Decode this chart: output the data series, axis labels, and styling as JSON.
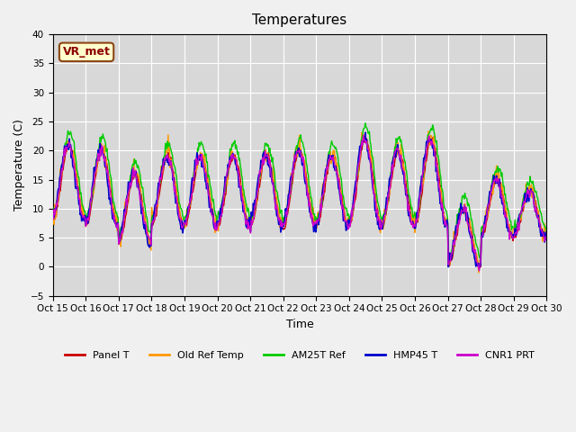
{
  "title": "Temperatures",
  "xlabel": "Time",
  "ylabel": "Temperature (C)",
  "ylim": [
    -5,
    40
  ],
  "annotation_text": "VR_met",
  "series_names": [
    "Panel T",
    "Old Ref Temp",
    "AM25T Ref",
    "HMP45 T",
    "CNR1 PRT"
  ],
  "series_colors": [
    "#cc0000",
    "#ff9900",
    "#00cc00",
    "#0000cc",
    "#cc00cc"
  ],
  "x_tick_labels": [
    "Oct 15",
    "Oct 16",
    "Oct 17",
    "Oct 18",
    "Oct 19",
    "Oct 20",
    "Oct 21",
    "Oct 22",
    "Oct 23",
    "Oct 24",
    "Oct 25",
    "Oct 26",
    "Oct 27",
    "Oct 28",
    "Oct 29",
    "Oct 30"
  ],
  "bg_color": "#f0f0f0",
  "plot_bg_color": "#d8d8d8",
  "n_days": 15,
  "points_per_day": 48,
  "yticks": [
    -5,
    0,
    5,
    10,
    15,
    20,
    25,
    30,
    35,
    40
  ]
}
